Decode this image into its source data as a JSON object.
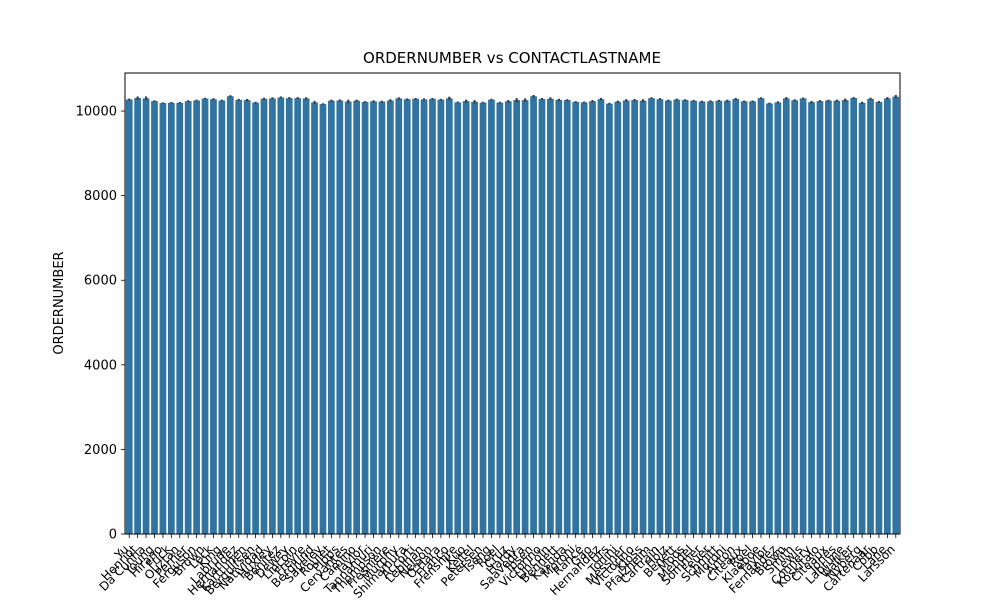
{
  "chart_data": {
    "type": "bar",
    "title": "ORDERNUMBER vs CONTACTLASTNAME",
    "xlabel": "",
    "ylabel": "ORDERNUMBER",
    "ylim": [
      0,
      10900
    ],
    "yticks": [
      0,
      2000,
      4000,
      6000,
      8000,
      10000
    ],
    "grid": false,
    "bar_color": "#3274a1",
    "errorbar_color": "#3d3d3d",
    "categories": [
      "Yu",
      "Henriot",
      "Da Cunha",
      "Young",
      "Hirano",
      "Frick",
      "Ouztan",
      "Perrier",
      "Ferguson",
      "Brown",
      "Leck",
      "King",
      "Labrune",
      "Hernandez",
      "Karttunen",
      "Bergulfsen",
      "Natividad",
      "Huxley",
      "Benitez",
      "Dewey",
      "Lincoln",
      "Freyre",
      "Berglund",
      "Saveley",
      "Roulet",
      "Pipps",
      "Cervantes",
      "Camino",
      "Taylor",
      "Tannamuri",
      "Thompson",
      "Fresnière",
      "Murphy",
      "Shimamura",
      "Accorti",
      "Lebihan",
      "Nelson",
      "O'Hara",
      "Franco",
      "Frenshire",
      "Kuo",
      "Keitel",
      "Petersen",
      "Tseng",
      "Roel",
      "Cruz",
      "Hardy",
      "Saavedra",
      "Ibsen",
      "Victorino",
      "Lincoln",
      "Bennett",
      "Kasuda",
      "Moroni",
      "Rancé",
      "Gao",
      "Hernandez",
      "Urs",
      "Tonini",
      "Messner",
      "Victorino",
      "Kloss",
      "Pfalzheim",
      "Cartrain",
      "Holz",
      "Benett",
      "Moos",
      "Mendel",
      "Sommer",
      "Feuer",
      "Schmitt",
      "Moroni",
      "Anton",
      "Citeaux",
      "Roel",
      "Klaeboe",
      "Taylor",
      "Fernandez",
      "Brown",
      "Smith",
      "Lewis",
      "Connery",
      "Koskitalo",
      "Citeaux",
      "Jones",
      "Labrune",
      "Walker",
      "Nyberg",
      "Cartenaar",
      "Cobb",
      "Lane",
      "Larsson"
    ],
    "visible_category_labels": [
      "Yu",
      "Henriot",
      "Da Cunha",
      "Young",
      "Hirano",
      "Frick",
      "Ouztan",
      "Perrier",
      "Ferguson",
      "Brown",
      "Leck",
      "King",
      "Labrune",
      "Hernandez",
      "Karttunen",
      "Bergulfsen",
      "Natividad",
      "Huxley",
      "Benitez",
      "Dewey",
      "Lincoln",
      "Freyre",
      "Berglund",
      "Saveley",
      "Roulet",
      "Pipps",
      "Cervantes",
      "Camino",
      "Taylor",
      "Tannamuri",
      "Thompson",
      "Fresnière",
      "Murphy",
      "Shimamura",
      "Accorti",
      "Lebihan",
      "Nelson",
      "O'Hara",
      "Franco",
      "Frenshire",
      "Kuo",
      "Keitel",
      "Petersen",
      "Tseng",
      "Roel",
      "Cruz",
      "Hardy",
      "Saavedra",
      "Ibsen",
      "Victorino",
      "Lincoln",
      "Bennett",
      "Kasuda",
      "Moroni",
      "Rancé",
      "Gao",
      "Hernandez",
      "Urs",
      "Tonini",
      "Messner",
      "Victorino",
      "Kloss",
      "Pfalzheim",
      "Cartrain",
      "Holz",
      "Benett",
      "Moos",
      "Mendel",
      "Sommer",
      "Feuer",
      "Schmitt",
      "Moroni",
      "Anton",
      "Citeaux",
      "Roel",
      "Klaeboe",
      "Taylor",
      "Fernandez",
      "Brown",
      "Smith",
      "Lewis",
      "Connery",
      "Koskitalo",
      "Citeaux",
      "Jones",
      "Labrune",
      "Walker",
      "Nyberg",
      "Cartenaar",
      "Cobb",
      "Lane",
      "Larsson"
    ],
    "values": [
      10275,
      10310,
      10300,
      10235,
      10190,
      10195,
      10195,
      10235,
      10250,
      10295,
      10280,
      10250,
      10350,
      10265,
      10260,
      10200,
      10290,
      10300,
      10320,
      10305,
      10305,
      10300,
      10205,
      10165,
      10245,
      10250,
      10225,
      10245,
      10215,
      10230,
      10225,
      10250,
      10300,
      10280,
      10290,
      10275,
      10290,
      10270,
      10300,
      10205,
      10235,
      10220,
      10200,
      10270,
      10200,
      10230,
      10260,
      10260,
      10350,
      10285,
      10290,
      10265,
      10260,
      10215,
      10205,
      10235,
      10280,
      10175,
      10220,
      10250,
      10260,
      10245,
      10305,
      10280,
      10250,
      10270,
      10260,
      10245,
      10225,
      10230,
      10245,
      10245,
      10285,
      10230,
      10230,
      10305,
      10180,
      10205,
      10300,
      10255,
      10300,
      10210,
      10235,
      10250,
      10245,
      10260,
      10310,
      10195,
      10290,
      10215,
      10300,
      10340
    ],
    "errors": [
      20,
      35,
      45,
      20,
      15,
      20,
      20,
      20,
      20,
      20,
      25,
      20,
      25,
      25,
      25,
      20,
      25,
      25,
      25,
      25,
      25,
      25,
      35,
      20,
      25,
      25,
      45,
      25,
      20,
      25,
      20,
      30,
      25,
      20,
      20,
      25,
      20,
      20,
      40,
      20,
      35,
      40,
      20,
      20,
      20,
      30,
      45,
      40,
      30,
      25,
      35,
      25,
      20,
      20,
      20,
      25,
      30,
      20,
      25,
      30,
      25,
      35,
      20,
      25,
      20,
      25,
      20,
      20,
      20,
      25,
      20,
      25,
      25,
      20,
      20,
      20,
      20,
      25,
      30,
      25,
      20,
      30,
      25,
      20,
      25,
      35,
      20,
      25,
      25,
      25,
      30,
      40
    ]
  }
}
